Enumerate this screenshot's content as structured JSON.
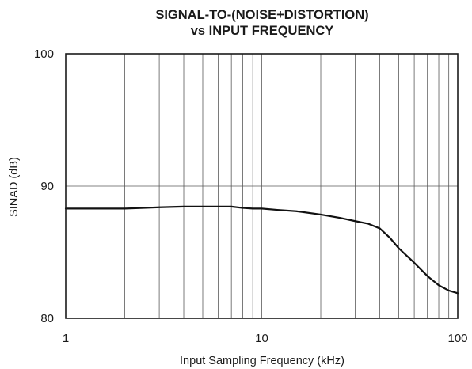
{
  "chart_data": {
    "type": "line",
    "title_lines": [
      "SIGNAL-TO-(NOISE+DISTORTION)",
      "vs INPUT FREQUENCY"
    ],
    "xlabel": "Input Sampling Frequency (kHz)",
    "ylabel": "SINAD (dB)",
    "x_scale": "log",
    "xlim": [
      1,
      100
    ],
    "ylim": [
      80,
      100
    ],
    "x_ticks": [
      1,
      10,
      100
    ],
    "x_tick_labels": [
      "1",
      "10",
      "100"
    ],
    "y_ticks": [
      80,
      90,
      100
    ],
    "y_tick_labels": [
      "80",
      "90",
      "100"
    ],
    "grid": true,
    "series": [
      {
        "color": "#111111",
        "x": [
          1,
          1.5,
          2,
          2.5,
          3,
          4,
          5,
          6,
          7,
          8,
          9,
          10,
          12,
          15,
          20,
          25,
          30,
          35,
          40,
          45,
          50,
          60,
          70,
          80,
          90,
          100
        ],
        "y": [
          88.3,
          88.3,
          88.3,
          88.35,
          88.4,
          88.45,
          88.45,
          88.45,
          88.45,
          88.35,
          88.3,
          88.3,
          88.2,
          88.1,
          87.85,
          87.6,
          87.35,
          87.15,
          86.8,
          86.1,
          85.3,
          84.2,
          83.2,
          82.5,
          82.1,
          81.9
        ]
      }
    ]
  }
}
